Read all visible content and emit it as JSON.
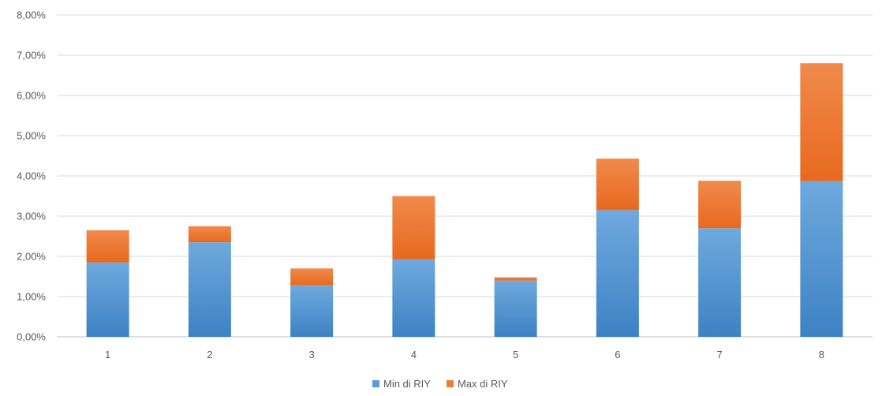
{
  "chart_data": {
    "type": "bar",
    "stacked": true,
    "categories": [
      "1",
      "2",
      "3",
      "4",
      "5",
      "6",
      "7",
      "8"
    ],
    "series": [
      {
        "name": "Min di RIY",
        "color": "#5B9BD5",
        "values": [
          1.85,
          2.35,
          1.28,
          1.93,
          1.4,
          3.15,
          2.7,
          3.87
        ]
      },
      {
        "name": "Max di RIY",
        "color": "#ED7D31",
        "values": [
          0.8,
          0.4,
          0.42,
          1.57,
          0.08,
          1.28,
          1.18,
          2.93
        ]
      }
    ],
    "ylim": [
      0,
      8
    ],
    "ytick_values": [
      0,
      1,
      2,
      3,
      4,
      5,
      6,
      7,
      8
    ],
    "ytick_labels": [
      "0,00%",
      "1,00%",
      "2,00%",
      "3,00%",
      "4,00%",
      "5,00%",
      "6,00%",
      "7,00%",
      "8,00%"
    ],
    "grid": true,
    "legend_position": "bottom-center",
    "title": "",
    "xlabel": "",
    "ylabel": ""
  }
}
